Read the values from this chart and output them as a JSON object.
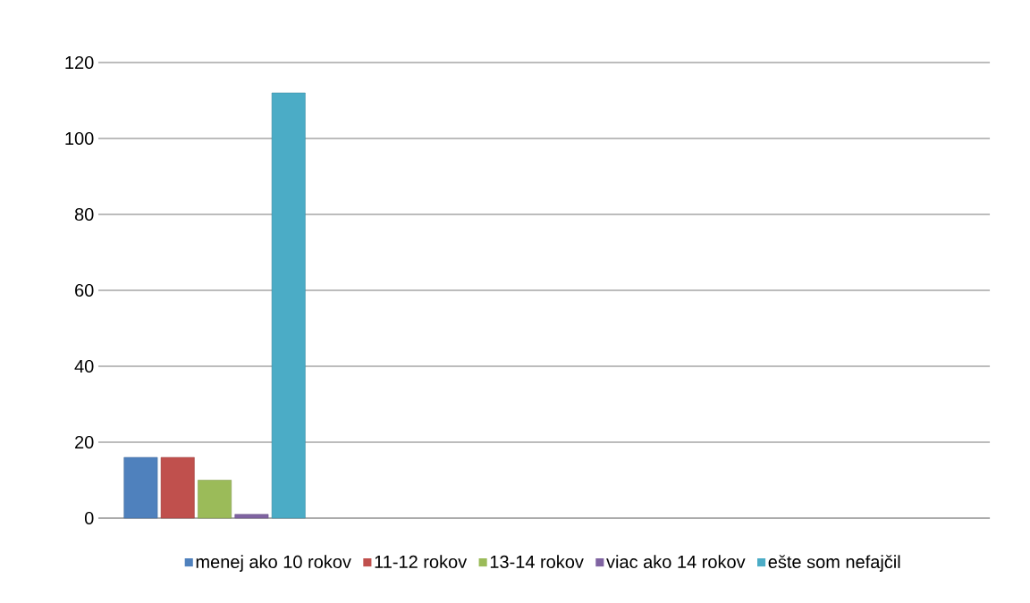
{
  "chart_data": {
    "type": "bar",
    "categories": [
      null
    ],
    "series": [
      {
        "name": "menej ako 10 rokov",
        "color": "#4f81bd",
        "values": [
          16
        ]
      },
      {
        "name": "11-12 rokov",
        "color": "#c0504d",
        "values": [
          16
        ]
      },
      {
        "name": "13-14 rokov",
        "color": "#9bbb59",
        "values": [
          10
        ]
      },
      {
        "name": "viac ako 14 rokov",
        "color": "#8064a2",
        "values": [
          1
        ]
      },
      {
        "name": "ešte som nefajčil",
        "color": "#4bacc6",
        "values": [
          112
        ]
      }
    ],
    "ylim": [
      0,
      120
    ],
    "yticks": [
      0,
      20,
      40,
      60,
      80,
      100,
      120
    ],
    "grid": "y",
    "legend": "bottom"
  }
}
